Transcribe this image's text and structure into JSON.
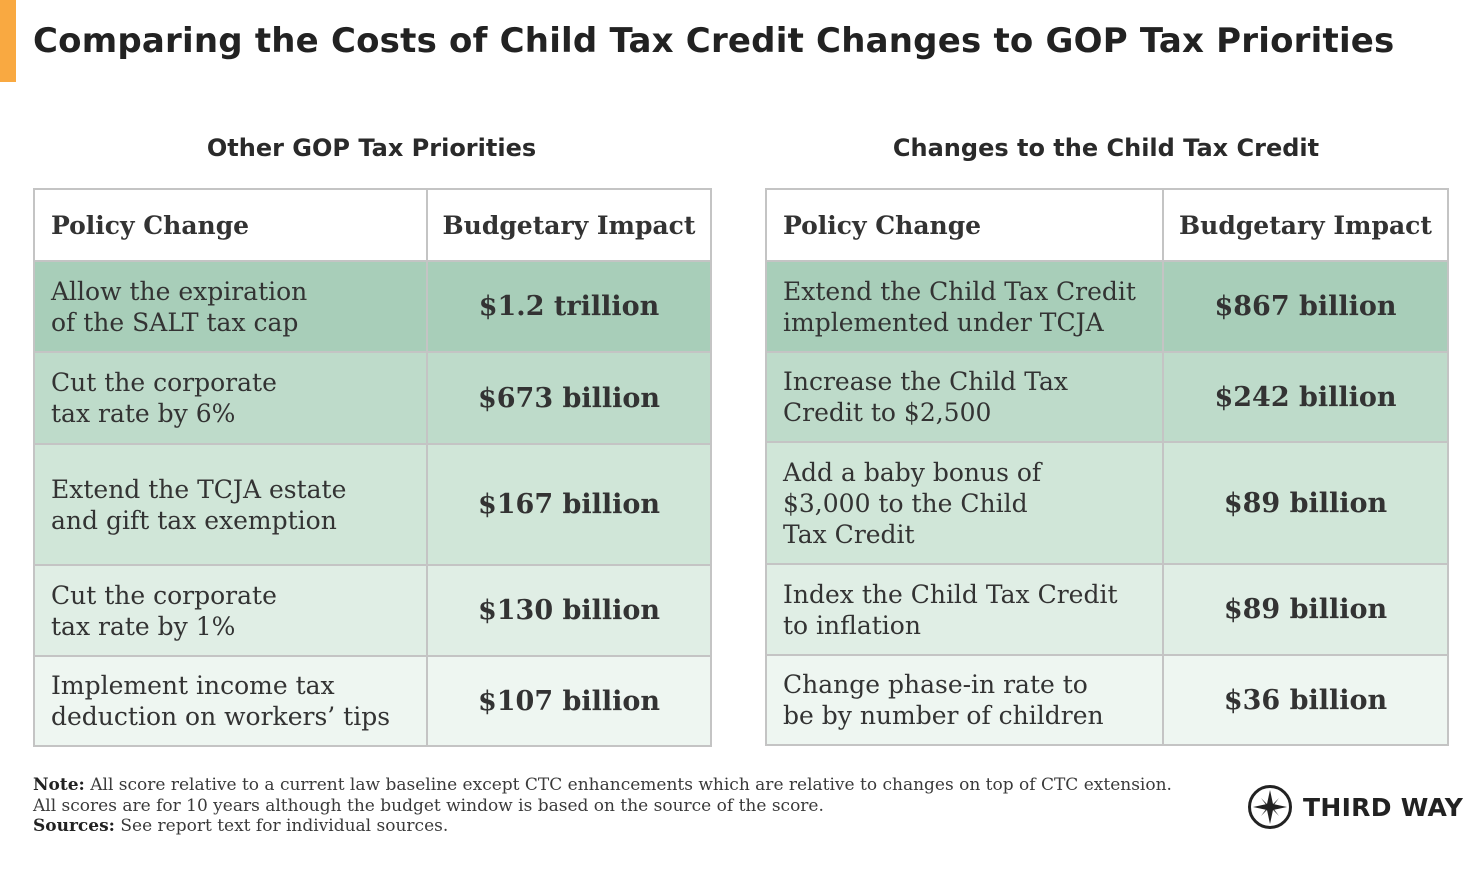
{
  "title": "Comparing the Costs of Child Tax Credit Changes to GOP Tax Priorities",
  "colors": {
    "accent": "#F9A941",
    "shades": [
      "#A8CEB9",
      "#BEDBCA",
      "#D0E6D8",
      "#E0EEE5",
      "#EEF6F1"
    ]
  },
  "chart_data": [
    {
      "type": "table",
      "title": "Other GOP Tax Priorities",
      "columns": [
        "Policy Change",
        "Budgetary Impact"
      ],
      "rows": [
        {
          "policy": [
            "Allow the expiration",
            "of the SALT tax cap"
          ],
          "impact": "$1.2 trillion",
          "value_billions": 1200
        },
        {
          "policy": [
            "Cut the corporate",
            "tax rate by 6%"
          ],
          "impact": "$673 billion",
          "value_billions": 673
        },
        {
          "policy": [
            "Extend the TCJA estate",
            "and gift tax exemption"
          ],
          "impact": "$167 billion",
          "value_billions": 167
        },
        {
          "policy": [
            "Cut the corporate",
            "tax rate by 1%"
          ],
          "impact": "$130 billion",
          "value_billions": 130
        },
        {
          "policy": [
            "Implement income tax",
            "deduction on workers’ tips"
          ],
          "impact": "$107 billion",
          "value_billions": 107
        }
      ]
    },
    {
      "type": "table",
      "title": "Changes to the Child Tax Credit",
      "columns": [
        "Policy Change",
        "Budgetary Impact"
      ],
      "rows": [
        {
          "policy": [
            "Extend the Child Tax Credit",
            "implemented under TCJA"
          ],
          "impact": "$867 billion",
          "value_billions": 867
        },
        {
          "policy": [
            "Increase the Child Tax",
            "Credit to $2,500"
          ],
          "impact": "$242 billion",
          "value_billions": 242
        },
        {
          "policy": [
            "Add a baby bonus of",
            "$3,000 to the Child",
            "Tax Credit"
          ],
          "impact": "$89 billion",
          "value_billions": 89
        },
        {
          "policy": [
            "Index the Child Tax Credit",
            "to inflation"
          ],
          "impact": "$89 billion",
          "value_billions": 89
        },
        {
          "policy": [
            "Change phase-in rate to",
            "be by number of children"
          ],
          "impact": "$36 billion",
          "value_billions": 36
        }
      ]
    }
  ],
  "notes": {
    "note_label": "Note:",
    "note_line1": "All score relative to a current law baseline except CTC enhancements which are relative to changes on top of CTC extension.",
    "note_line2": "All scores are for 10 years although the budget window is based on the source of the score.",
    "sources_label": "Sources:",
    "sources_text": "See report text for individual sources."
  },
  "brand": {
    "name": "THIRD WAY",
    "icon": "compass-star-icon"
  }
}
